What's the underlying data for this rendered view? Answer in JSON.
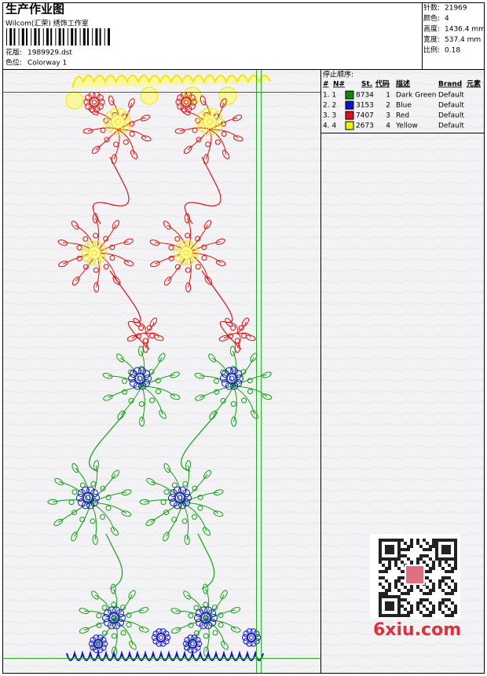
{
  "header": {
    "title": "生产作业图",
    "studio": "Wilcom(汇荣) 绣饰工作室",
    "pattern_label": "花版:",
    "pattern": "1989929.dst",
    "colorway_label": "色位:",
    "colorway": "Colorway 1"
  },
  "info": [
    {
      "label": "针数:",
      "value": "21969"
    },
    {
      "label": "颜色:",
      "value": "4"
    },
    {
      "label": "高度:",
      "value": "1436.4 mm"
    },
    {
      "label": "宽度:",
      "value": "537.4 mm"
    },
    {
      "label": "比例:",
      "value": "0.18"
    }
  ],
  "table": {
    "title": "停止顺序:",
    "columns": [
      "#",
      "N#",
      "St.",
      "代码",
      "描述",
      "Brand",
      "元素"
    ],
    "rows": [
      {
        "index": "1. 1",
        "color": "#0a8a0a",
        "stitches": "8734",
        "code": "1",
        "description": "Dark Green",
        "brand": "Default"
      },
      {
        "index": "2. 2",
        "color": "#1010d0",
        "stitches": "3153",
        "code": "2",
        "description": "Blue",
        "brand": "Default"
      },
      {
        "index": "3. 3",
        "color": "#e01010",
        "stitches": "7407",
        "code": "3",
        "description": "Red",
        "brand": "Default"
      },
      {
        "index": "4. 4",
        "color": "#f0f000",
        "stitches": "2673",
        "code": "4",
        "description": "Yellow",
        "brand": "Default"
      }
    ]
  },
  "watermark": "6xiu.com"
}
